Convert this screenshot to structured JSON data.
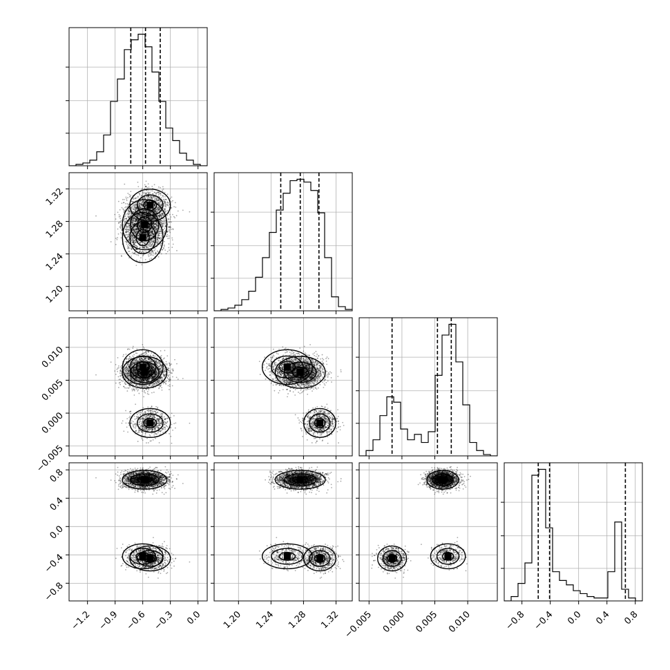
{
  "chart_data": {
    "type": "corner",
    "parameters": [
      {
        "range": [
          -1.4,
          0.1
        ],
        "ticks": [
          -1.2,
          -0.9,
          -0.6,
          -0.3,
          0.0
        ],
        "tick_labels": [
          "−1.2",
          "−0.9",
          "−0.6",
          "−0.3",
          "0.0"
        ],
        "quantiles": [
          -0.73,
          -0.57,
          -0.41
        ],
        "hist": {
          "edges_start": -1.4,
          "bin_width": 0.075,
          "counts": [
            0,
            1,
            2,
            4,
            10,
            22,
            46,
            62,
            83,
            90,
            94,
            85,
            67,
            46,
            27,
            18,
            9,
            4,
            1,
            0
          ]
        }
      },
      {
        "range": [
          1.17,
          1.34
        ],
        "ticks": [
          1.2,
          1.24,
          1.28,
          1.32
        ],
        "tick_labels": [
          "1.20",
          "1.24",
          "1.28",
          "1.32"
        ],
        "quantiles": [
          1.252,
          1.276,
          1.299
        ],
        "hist": {
          "edges_start": 1.17,
          "bin_width": 0.0085,
          "counts": [
            0,
            1,
            2,
            4,
            8,
            14,
            24,
            38,
            56,
            72,
            84,
            93,
            94,
            92,
            86,
            70,
            38,
            10,
            3,
            1
          ]
        }
      },
      {
        "range": [
          -0.0065,
          0.0145
        ],
        "ticks": [
          -0.005,
          0.0,
          0.005,
          0.01
        ],
        "tick_labels": [
          "−0.005",
          "0.000",
          "0.005",
          "0.010"
        ],
        "quantiles": [
          -0.0015,
          0.0054,
          0.0075
        ],
        "hist": {
          "edges_start": -0.0065,
          "bin_width": 0.00105,
          "counts": [
            0,
            4,
            12,
            30,
            44,
            40,
            20,
            12,
            16,
            10,
            18,
            60,
            90,
            98,
            70,
            38,
            10,
            4,
            1,
            0
          ]
        }
      },
      {
        "range": [
          -1.05,
          0.9
        ],
        "ticks": [
          -0.8,
          -0.4,
          0.0,
          0.4,
          0.8
        ],
        "tick_labels": [
          "−0.8",
          "−0.4",
          "0.0",
          "0.4",
          "0.8"
        ],
        "quantiles": [
          -0.57,
          -0.41,
          0.66
        ],
        "hist": {
          "edges_start": -1.05,
          "bin_width": 0.0975,
          "counts": [
            0,
            3,
            12,
            26,
            86,
            90,
            50,
            20,
            14,
            11,
            7,
            5,
            3,
            2,
            2,
            20,
            54,
            8,
            2,
            0
          ]
        }
      }
    ],
    "density_ticks": [
      0.33,
      0.66,
      1.0
    ],
    "clusters": [
      {
        "weight": 0.7,
        "mean": [
          -0.58,
          1.276,
          0.0062,
          0.66
        ]
      },
      {
        "weight": 0.2,
        "mean": [
          -0.52,
          1.3,
          -0.0015,
          -0.45
        ]
      },
      {
        "weight": 0.1,
        "mean": [
          -0.6,
          1.26,
          0.007,
          -0.42
        ]
      }
    ]
  }
}
